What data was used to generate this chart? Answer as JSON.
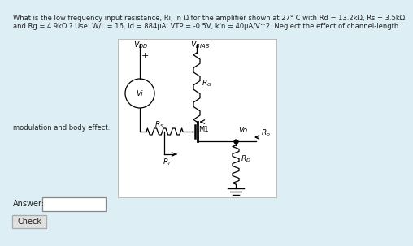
{
  "background_color": "#ddeef5",
  "circuit_bg": "#ffffff",
  "title_line1": "What is the low frequency input resistance, Ri, in Ω for the amplifier shown at 27° C with Rd = 13.2kΩ, Rs = 3.5kΩ",
  "title_line2": "and Rg = 4.9kΩ ? Use: W/L = 16, Id = 884μA, VTP = -0.5V, k'n = 40μA/V^2. Neglect the effect of channel-length",
  "side_text": "modulation and body effect.",
  "answer_label": "Answer:",
  "check_label": "Check",
  "text_color": "#222222"
}
